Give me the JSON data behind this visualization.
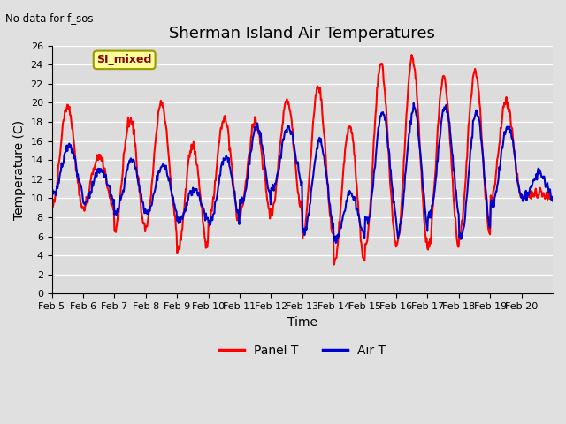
{
  "title": "Sherman Island Air Temperatures",
  "top_left_text": "No data for f_sos",
  "legend_box_text": "SI_mixed",
  "xlabel": "Time",
  "ylabel": "Temperature (C)",
  "ylim": [
    0,
    26
  ],
  "yticks": [
    0,
    2,
    4,
    6,
    8,
    10,
    12,
    14,
    16,
    18,
    20,
    22,
    24,
    26
  ],
  "x_labels": [
    "Feb 5",
    "Feb 6",
    "Feb 7",
    "Feb 8",
    "Feb 9",
    "Feb 10",
    "Feb 11",
    "Feb 12",
    "Feb 13",
    "Feb 14",
    "Feb 15",
    "Feb 16",
    "Feb 17",
    "Feb 18",
    "Feb 19",
    "Feb 20"
  ],
  "panel_t_color": "#FF0000",
  "air_t_color": "#0000CC",
  "background_color": "#E0E0E0",
  "plot_bg_color": "#DCDCDC",
  "legend_box_color": "#FFFF99",
  "legend_box_border": "#999900",
  "legend_box_text_color": "#8B0000",
  "title_fontsize": 13,
  "axis_fontsize": 10,
  "tick_fontsize": 8,
  "line_width": 1.5,
  "panel_peaks": [
    19.7,
    14.5,
    18.3,
    20.0,
    15.5,
    18.5,
    18.0,
    20.3,
    21.5,
    17.5,
    23.8,
    24.5,
    22.8,
    23.3,
    20.0,
    10.5
  ],
  "panel_mins": [
    9.0,
    9.0,
    6.5,
    7.0,
    4.5,
    7.5,
    8.5,
    8.5,
    6.0,
    3.2,
    5.0,
    5.0,
    4.8,
    6.0,
    10.0,
    10.0
  ],
  "air_peaks": [
    15.5,
    13.0,
    14.0,
    13.5,
    11.0,
    14.5,
    17.5,
    17.5,
    16.0,
    10.5,
    19.0,
    19.5,
    19.5,
    19.0,
    17.5,
    12.5
  ],
  "air_mins": [
    10.5,
    9.5,
    8.5,
    8.5,
    7.5,
    7.5,
    9.5,
    11.0,
    6.5,
    5.5,
    7.5,
    6.5,
    8.0,
    6.0,
    9.5,
    10.0
  ]
}
